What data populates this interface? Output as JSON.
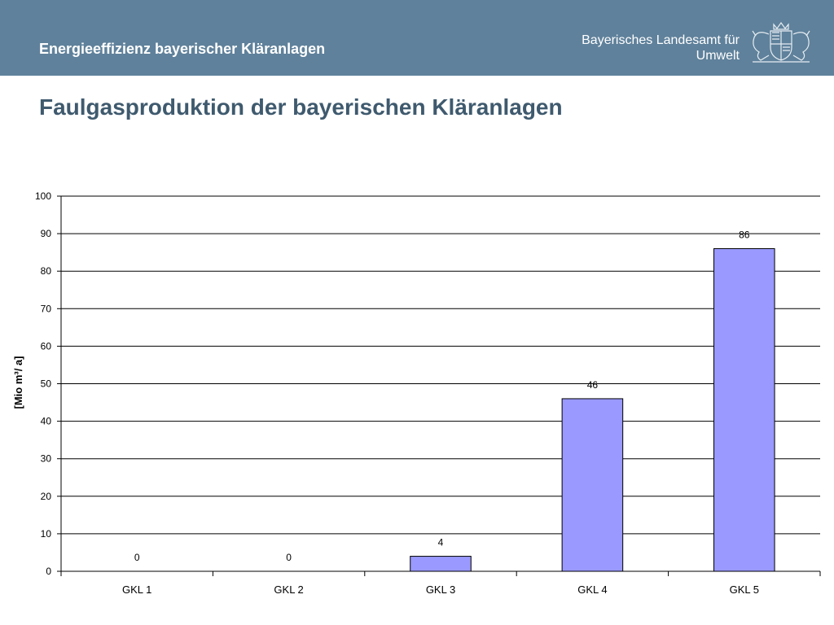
{
  "header": {
    "title": "Energieeffizienz bayerischer Kläranlagen",
    "agency_line1": "Bayerisches Landesamt für",
    "agency_line2": "Umwelt",
    "crest_icon": "bavarian-coat-of-arms-icon"
  },
  "slide": {
    "title": "Faulgasproduktion der bayerischen Kläranlagen"
  },
  "colors": {
    "header_bg": "#5f819b",
    "title_text": "#3f5a6e",
    "bar_fill": "#9999ff",
    "bar_stroke": "#000000"
  },
  "chart_data": {
    "type": "bar",
    "title": "",
    "xlabel": "",
    "ylabel": "[Mio m³/ a]",
    "categories": [
      "GKL 1",
      "GKL 2",
      "GKL 3",
      "GKL 4",
      "GKL 5"
    ],
    "values": [
      0,
      0,
      4,
      46,
      86
    ],
    "data_labels": [
      "0",
      "0",
      "4",
      "46",
      "86"
    ],
    "ylim": [
      0,
      100
    ],
    "yticks": [
      0,
      10,
      20,
      30,
      40,
      50,
      60,
      70,
      80,
      90,
      100
    ],
    "grid": true,
    "legend": "none"
  }
}
